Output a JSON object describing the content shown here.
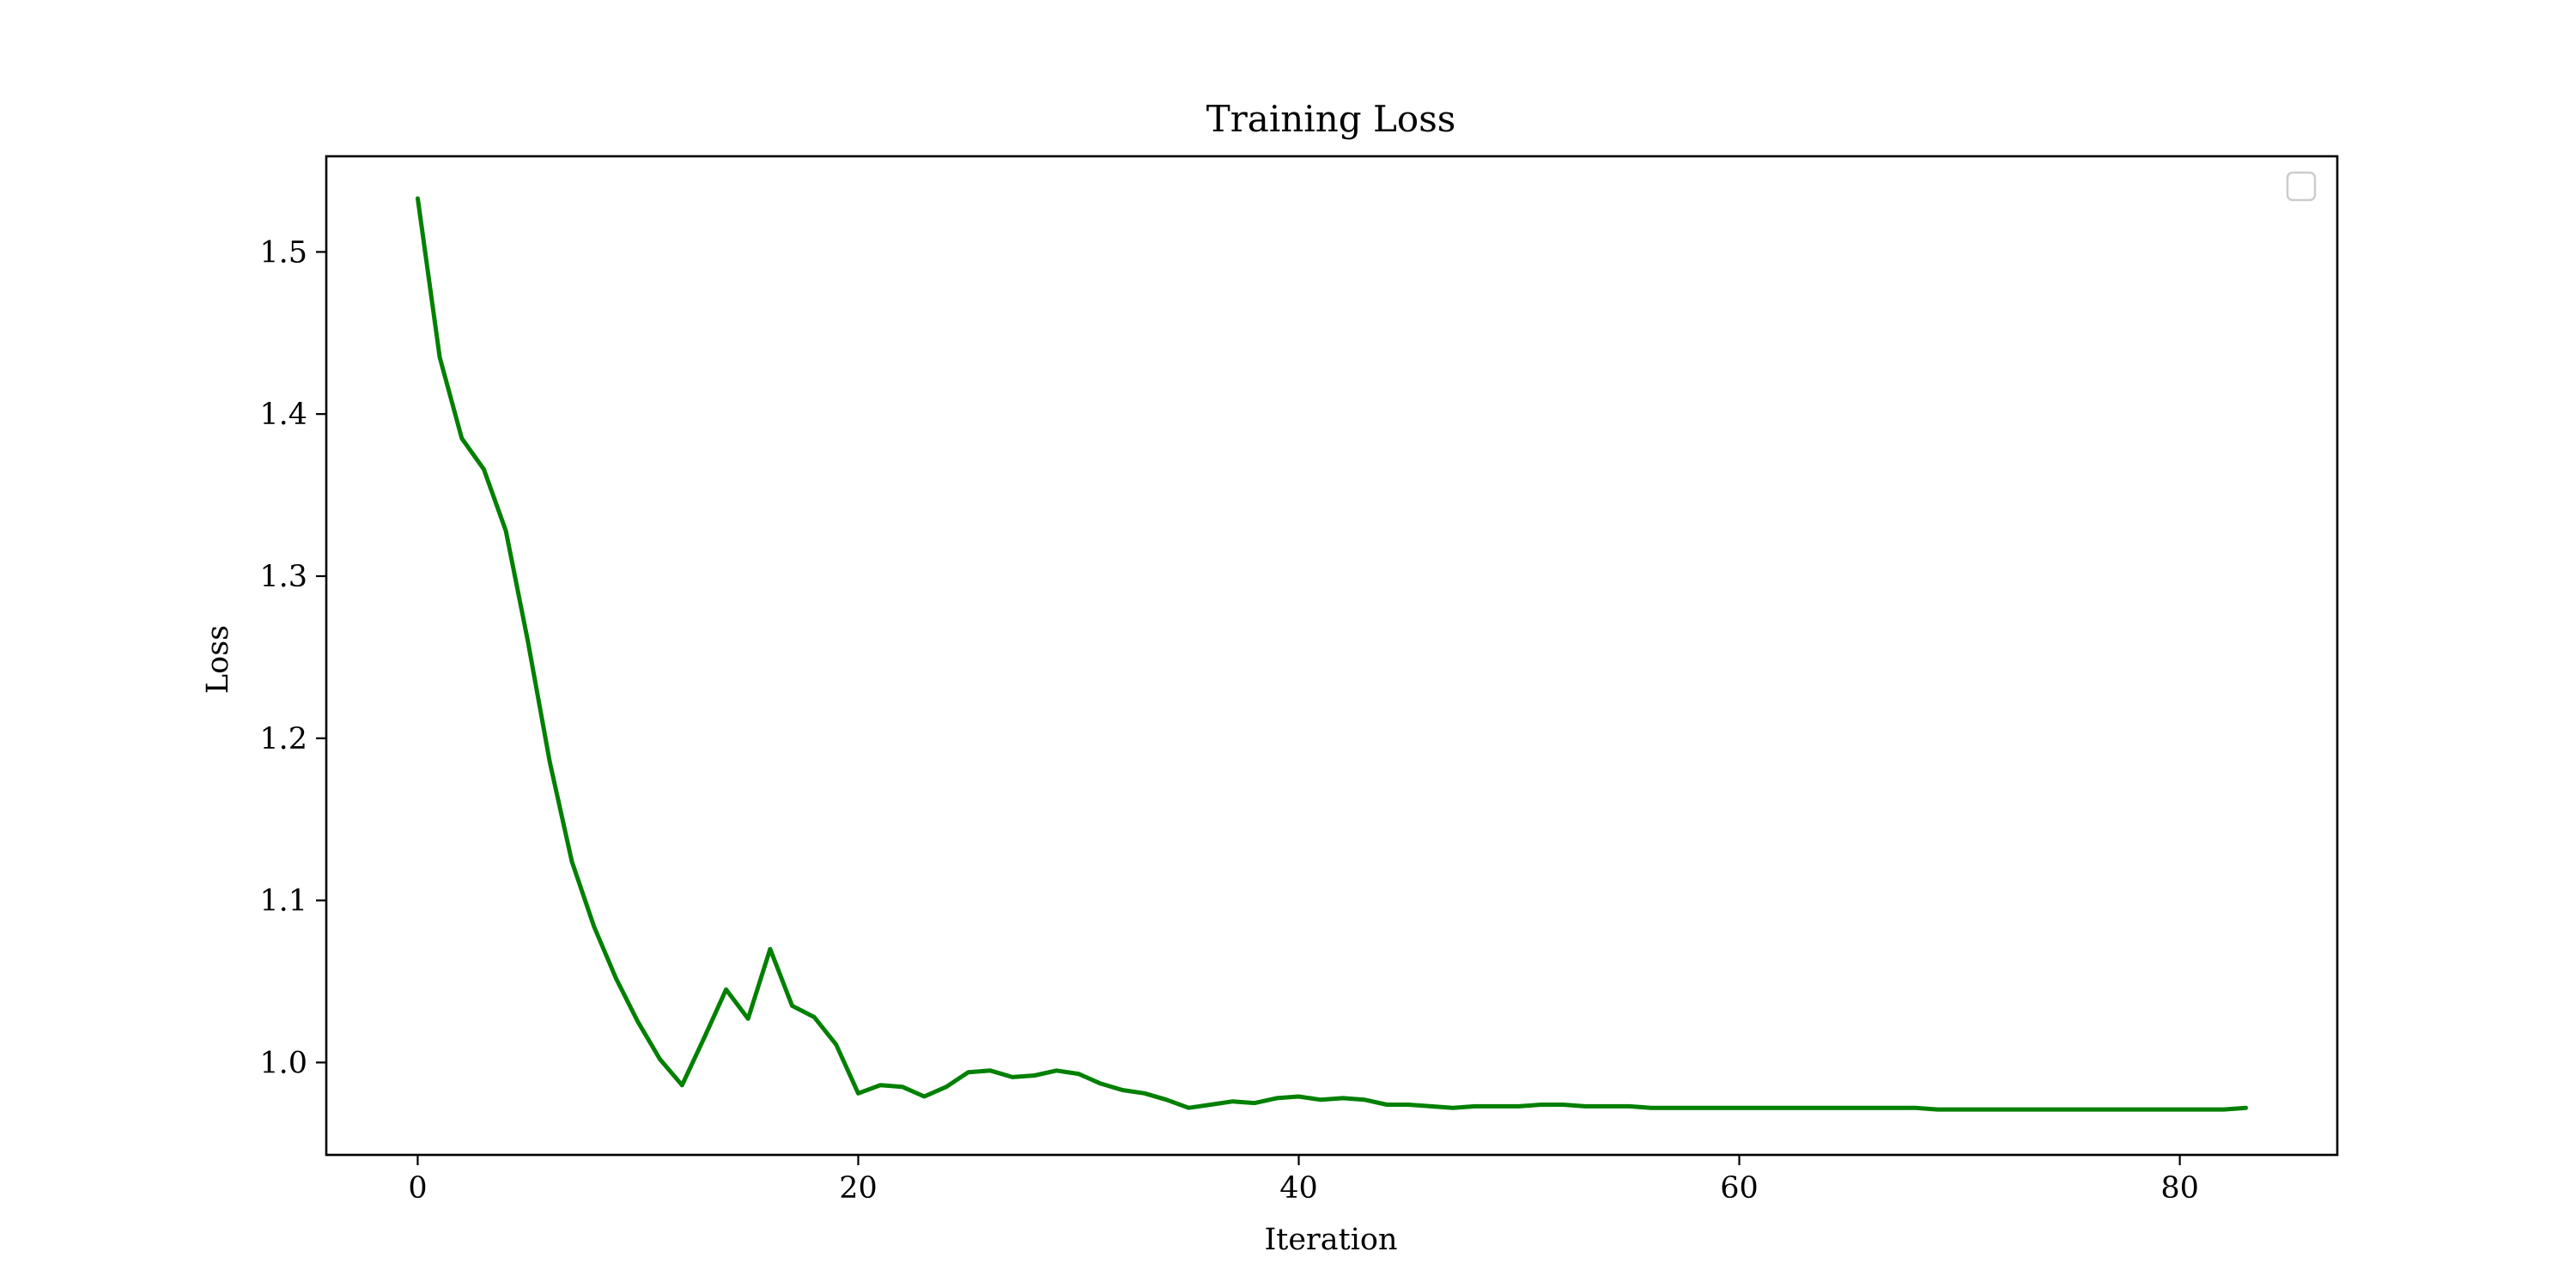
{
  "chart_data": {
    "type": "line",
    "title": "Training Loss",
    "xlabel": "Iteration",
    "ylabel": "Loss",
    "xlim": [
      -4.15,
      87.15
    ],
    "ylim": [
      0.943,
      1.559
    ],
    "xticks": [
      0,
      20,
      40,
      60,
      80
    ],
    "yticks": [
      1.0,
      1.1,
      1.2,
      1.3,
      1.4,
      1.5
    ],
    "ytick_labels": [
      "1.0",
      "1.1",
      "1.2",
      "1.3",
      "1.4",
      "1.5"
    ],
    "grid": false,
    "legend": {
      "placement": "top-right",
      "entries": []
    },
    "line_color": "#008000",
    "series": [
      {
        "x": [
          0,
          1,
          2,
          3,
          4,
          5,
          6,
          7,
          8,
          9,
          10,
          11,
          12,
          13,
          14,
          15,
          16,
          17,
          18,
          19,
          20,
          21,
          22,
          23,
          24,
          25,
          26,
          27,
          28,
          29,
          30,
          31,
          32,
          33,
          34,
          35,
          36,
          37,
          38,
          39,
          40,
          41,
          42,
          43,
          44,
          45,
          46,
          47,
          48,
          49,
          50,
          51,
          52,
          53,
          54,
          55,
          56,
          57,
          58,
          59,
          60,
          61,
          62,
          63,
          64,
          65,
          66,
          67,
          68,
          69,
          70,
          71,
          72,
          73,
          74,
          75,
          76,
          77,
          78,
          79,
          80,
          81,
          82,
          83
        ],
        "values": [
          1.533,
          1.435,
          1.385,
          1.366,
          1.328,
          1.26,
          1.185,
          1.124,
          1.084,
          1.052,
          1.025,
          1.002,
          0.986,
          1.015,
          1.045,
          1.027,
          1.07,
          1.035,
          1.028,
          1.011,
          0.981,
          0.986,
          0.985,
          0.979,
          0.985,
          0.994,
          0.995,
          0.991,
          0.992,
          0.995,
          0.993,
          0.987,
          0.983,
          0.981,
          0.977,
          0.972,
          0.974,
          0.976,
          0.975,
          0.978,
          0.979,
          0.977,
          0.978,
          0.977,
          0.974,
          0.974,
          0.973,
          0.972,
          0.973,
          0.973,
          0.973,
          0.974,
          0.974,
          0.973,
          0.973,
          0.973,
          0.972,
          0.972,
          0.972,
          0.972,
          0.972,
          0.972,
          0.972,
          0.972,
          0.972,
          0.972,
          0.972,
          0.972,
          0.972,
          0.971,
          0.971,
          0.971,
          0.971,
          0.971,
          0.971,
          0.971,
          0.971,
          0.971,
          0.971,
          0.971,
          0.971,
          0.971,
          0.971,
          0.972
        ]
      }
    ]
  }
}
